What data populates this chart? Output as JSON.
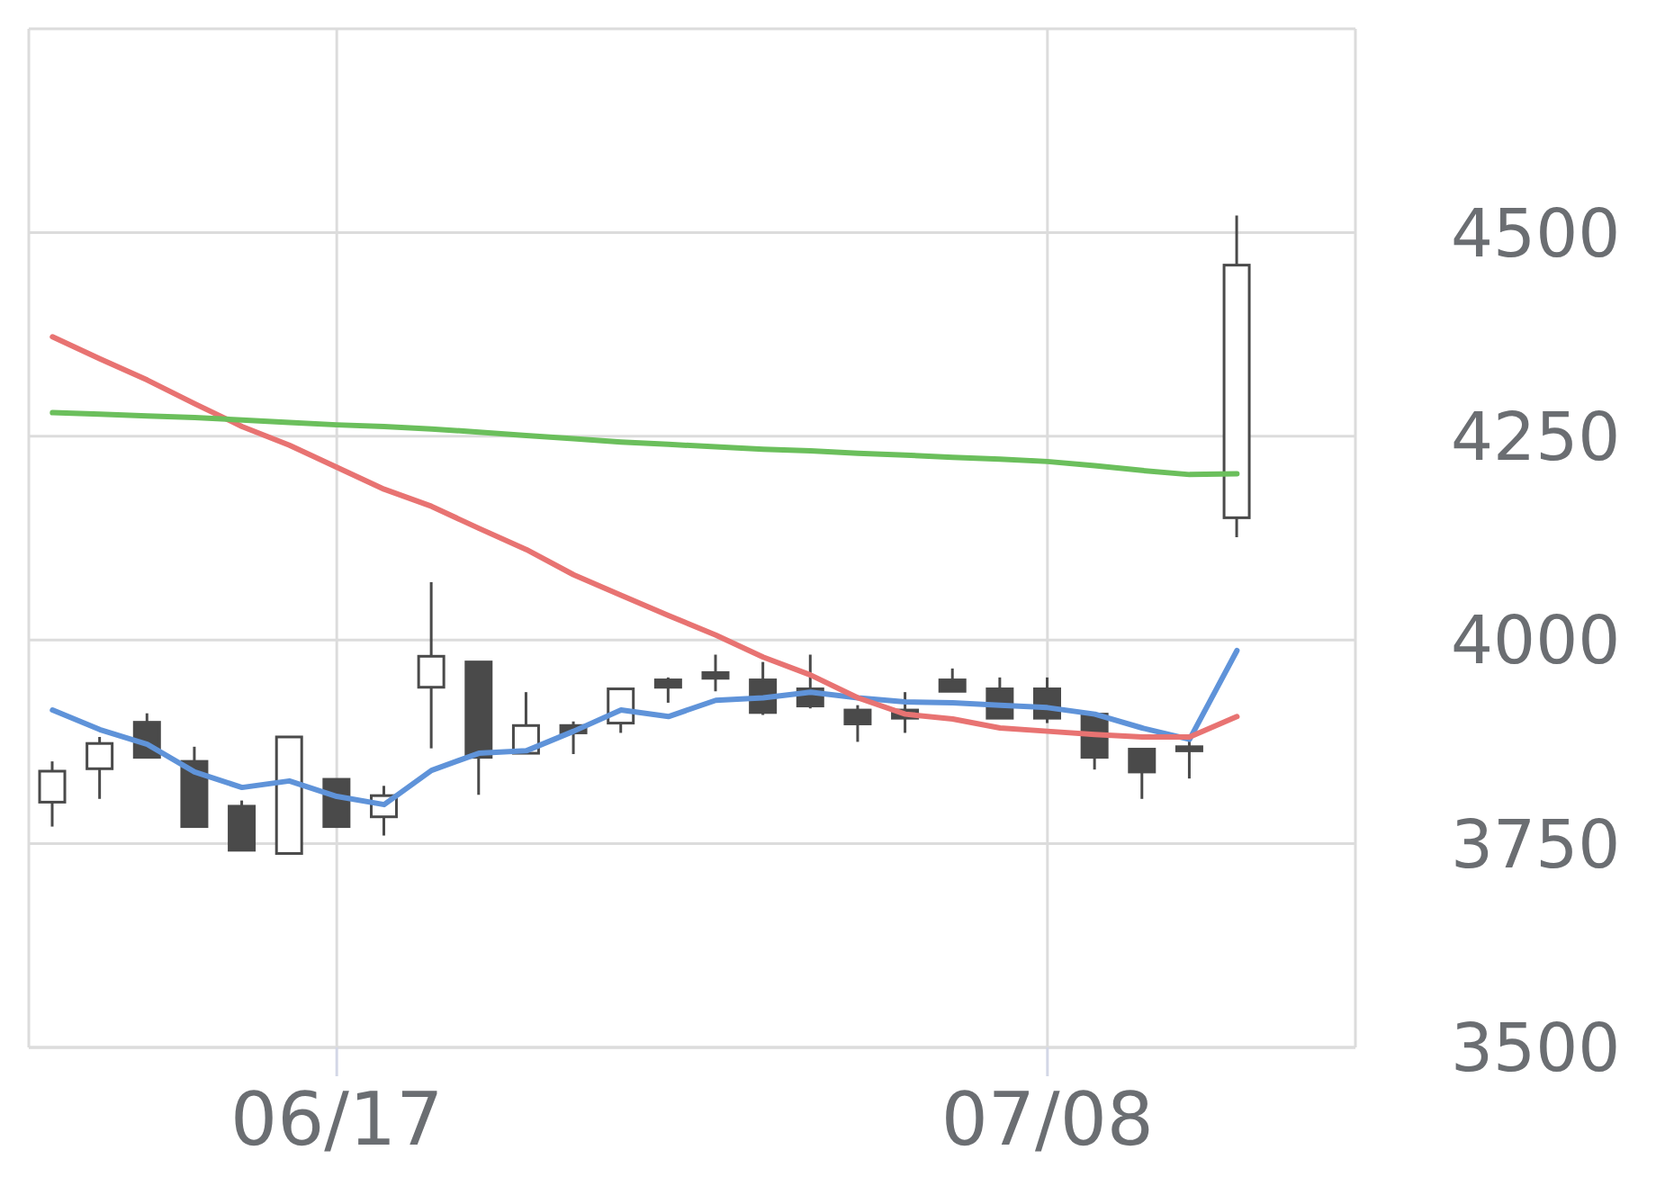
{
  "chart_data": {
    "type": "candlestick",
    "color": "#4a4a4a",
    "categories": [
      null,
      null,
      null,
      null,
      null,
      null,
      "06/17",
      null,
      null,
      null,
      null,
      null,
      null,
      null,
      null,
      null,
      null,
      null,
      null,
      null,
      null,
      "07/08",
      null,
      null,
      null,
      null
    ],
    "ohlc": [
      [
        3801,
        3851,
        3771,
        3839
      ],
      [
        3842,
        3881,
        3805,
        3873
      ],
      [
        3899,
        3910,
        3856,
        3856
      ],
      [
        3851,
        3869,
        3771,
        3771
      ],
      [
        3796,
        3803,
        3742,
        3742
      ],
      [
        3738,
        3881,
        3738,
        3881
      ],
      [
        3829,
        3829,
        3771,
        3771
      ],
      [
        3783,
        3821,
        3760,
        3809
      ],
      [
        3942,
        4071,
        3867,
        3980
      ],
      [
        3973,
        3973,
        3810,
        3856
      ],
      [
        3861,
        3936,
        3861,
        3895
      ],
      [
        3895,
        3900,
        3860,
        3886
      ],
      [
        3898,
        3940,
        3886,
        3940
      ],
      [
        3951,
        3954,
        3923,
        3942
      ],
      [
        3960,
        3982,
        3937,
        3953
      ],
      [
        3951,
        3973,
        3908,
        3911
      ],
      [
        3940,
        3982,
        3916,
        3919
      ],
      [
        3914,
        3920,
        3875,
        3897
      ],
      [
        3914,
        3936,
        3886,
        3904
      ],
      [
        3951,
        3965,
        3937,
        3937
      ],
      [
        3940,
        3954,
        3904,
        3904
      ],
      [
        3940,
        3954,
        3898,
        3904
      ],
      [
        3909,
        3911,
        3841,
        3856
      ],
      [
        3866,
        3866,
        3805,
        3838
      ],
      [
        3869,
        3878,
        3830,
        3864
      ],
      [
        4150,
        4521,
        4126,
        4460
      ]
    ],
    "series": [
      {
        "type": "line",
        "color": "#5f93d9",
        "values": [
          3914,
          3890,
          3872,
          3838,
          3819,
          3827,
          3808,
          3798,
          3840,
          3861,
          3864,
          3888,
          3914,
          3906,
          3926,
          3929,
          3936,
          3929,
          3924,
          3923,
          3920,
          3917,
          3909,
          3892,
          3878,
          3987
        ]
      },
      {
        "type": "line",
        "color": "#e87372",
        "values": [
          4372,
          4345,
          4319,
          4290,
          4262,
          4239,
          4212,
          4185,
          4164,
          4137,
          4111,
          4080,
          4055,
          4030,
          4006,
          3979,
          3957,
          3929,
          3909,
          3903,
          3892,
          3888,
          3884,
          3881,
          3881,
          3906
        ]
      },
      {
        "type": "line",
        "color": "#6bbf5c",
        "values": [
          4279,
          4277,
          4275,
          4273,
          4270,
          4267,
          4264,
          4262,
          4259,
          4255,
          4251,
          4247,
          4243,
          4240,
          4237,
          4234,
          4232,
          4229,
          4227,
          4224,
          4222,
          4219,
          4214,
          4208,
          4203,
          4204
        ]
      }
    ],
    "ylim": [
      3500,
      4750
    ],
    "yticks": [
      3500,
      3750,
      4000,
      4250,
      4500
    ],
    "grid": true
  }
}
